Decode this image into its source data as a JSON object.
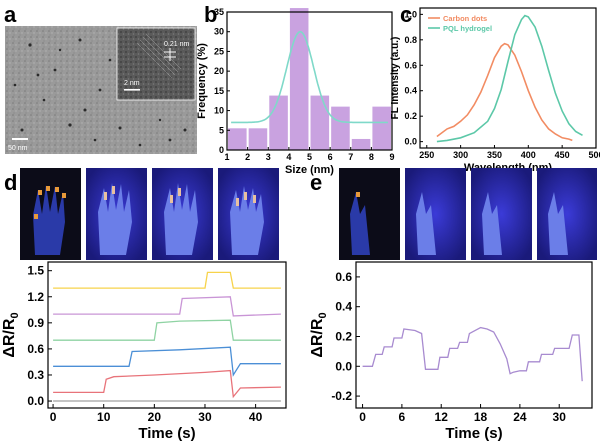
{
  "panel_labels": {
    "a": "a",
    "b": "b",
    "c": "c",
    "d": "d",
    "e": "e"
  },
  "panel_a": {
    "scale_bar": "50 nm",
    "inset_scale_bar": "2 nm",
    "lattice_label": "0.21 nm"
  },
  "colors": {
    "bar": "#c9a2e0",
    "fit": "#7fd9c9",
    "carbon": "#f28c63",
    "pql": "#5cc8a8",
    "d_yellow": "#f7d34b",
    "d_purple": "#c995d6",
    "d_green": "#8fd3a3",
    "d_blue": "#4b8fd6",
    "d_red": "#e8737a",
    "d_gray": "#a0a0a0",
    "e_line": "#a88bd0"
  },
  "chart_data": [
    {
      "id": "b",
      "type": "bar",
      "title": "",
      "xlabel": "Size (nm)",
      "ylabel": "Frequency (%)",
      "xlim": [
        1,
        9
      ],
      "ylim": [
        0,
        35
      ],
      "xticks": [
        "1",
        "2",
        "3",
        "4",
        "5",
        "6",
        "7",
        "8",
        "9"
      ],
      "yticks": [
        "0",
        "5",
        "10",
        "15",
        "20",
        "25",
        "30",
        "35"
      ],
      "bar_centers": [
        1.5,
        2.5,
        3.5,
        4.5,
        5.5,
        6.5,
        7.5,
        8.5
      ],
      "values": [
        5.5,
        5.5,
        13.8,
        36,
        13.8,
        11,
        2.8,
        11
      ],
      "fit": {
        "type": "gaussian",
        "baseline": 7,
        "amplitude": 23,
        "center": 4.55,
        "sigma": 0.65
      }
    },
    {
      "id": "c",
      "type": "line",
      "xlabel": "Wavelength (nm)",
      "ylabel": "FL Intensity (a.u.)",
      "xlim": [
        240,
        500
      ],
      "ylim": [
        -0.05,
        1.05
      ],
      "xticks": [
        "250",
        "300",
        "350",
        "400",
        "450",
        "500"
      ],
      "yticks": [
        "0.0",
        "0.2",
        "0.4",
        "0.6",
        "0.8",
        "1.0"
      ],
      "series": [
        {
          "name": "Carbon dots",
          "x": [
            265,
            280,
            290,
            300,
            310,
            320,
            330,
            340,
            350,
            360,
            365,
            370,
            380,
            390,
            400,
            410,
            420,
            430,
            440,
            450,
            460,
            465
          ],
          "y": [
            0.04,
            0.1,
            0.12,
            0.16,
            0.21,
            0.29,
            0.39,
            0.52,
            0.66,
            0.75,
            0.77,
            0.76,
            0.68,
            0.55,
            0.4,
            0.27,
            0.17,
            0.1,
            0.06,
            0.03,
            0.02,
            0.01
          ]
        },
        {
          "name": "PQL hydrogel",
          "x": [
            265,
            280,
            300,
            320,
            340,
            350,
            360,
            370,
            380,
            390,
            395,
            400,
            410,
            420,
            430,
            440,
            450,
            460,
            470,
            480
          ],
          "y": [
            0.0,
            0.01,
            0.03,
            0.07,
            0.16,
            0.26,
            0.41,
            0.63,
            0.84,
            0.96,
            0.99,
            0.98,
            0.9,
            0.75,
            0.56,
            0.38,
            0.24,
            0.14,
            0.08,
            0.05
          ]
        }
      ]
    },
    {
      "id": "d",
      "type": "line",
      "xlabel": "Time (s)",
      "ylabel": "ΔR/R0",
      "xlim": [
        -1,
        46
      ],
      "ylim": [
        -0.08,
        1.6
      ],
      "xticks": [
        "0",
        "10",
        "20",
        "30",
        "40"
      ],
      "yticks": [
        "0.0",
        "0.3",
        "0.6",
        "0.9",
        "1.2",
        "1.5"
      ],
      "series": [
        {
          "name": "gray",
          "x": [
            0,
            45
          ],
          "y": [
            0.0,
            0.0
          ]
        },
        {
          "name": "red",
          "x": [
            0,
            10,
            10.5,
            12,
            20,
            30,
            35,
            35.6,
            37,
            45
          ],
          "y": [
            0.1,
            0.1,
            0.25,
            0.28,
            0.3,
            0.33,
            0.35,
            0.05,
            0.15,
            0.16
          ]
        },
        {
          "name": "blue",
          "x": [
            0,
            15,
            15.6,
            25,
            35,
            35.6,
            37,
            45
          ],
          "y": [
            0.4,
            0.4,
            0.57,
            0.59,
            0.62,
            0.3,
            0.43,
            0.43
          ]
        },
        {
          "name": "green",
          "x": [
            0,
            20,
            20.5,
            25,
            35,
            35.6,
            45
          ],
          "y": [
            0.7,
            0.7,
            0.9,
            0.92,
            0.93,
            0.7,
            0.7
          ]
        },
        {
          "name": "purple",
          "x": [
            0,
            25,
            25.5,
            35,
            35.6,
            45
          ],
          "y": [
            1.0,
            1.0,
            1.18,
            1.2,
            0.98,
            1.0
          ]
        },
        {
          "name": "yellow",
          "x": [
            0,
            30,
            30.5,
            35,
            35.6,
            45
          ],
          "y": [
            1.3,
            1.3,
            1.48,
            1.48,
            1.3,
            1.3
          ]
        }
      ]
    },
    {
      "id": "e",
      "type": "line",
      "xlabel": "Time (s)",
      "ylabel": "ΔR/R0",
      "xlim": [
        -1,
        35
      ],
      "ylim": [
        -0.28,
        0.7
      ],
      "xticks": [
        "0",
        "6",
        "12",
        "18",
        "24",
        "30"
      ],
      "yticks": [
        "-0.2",
        "0.0",
        "0.2",
        "0.4",
        "0.6"
      ],
      "series": [
        {
          "name": "response",
          "x": [
            0,
            1.5,
            2,
            3,
            3.3,
            4.5,
            4.8,
            6,
            6.3,
            8,
            9,
            9.6,
            10,
            11.5,
            11.8,
            13,
            13.3,
            14.5,
            14.8,
            16,
            16.3,
            18,
            19,
            20,
            21,
            22,
            22.5,
            23,
            24,
            25,
            25.3,
            27,
            27.3,
            29,
            29.3,
            31.5,
            32,
            33,
            33.5
          ],
          "y": [
            0.0,
            0.0,
            0.08,
            0.08,
            0.13,
            0.13,
            0.19,
            0.19,
            0.25,
            0.24,
            0.22,
            -0.02,
            -0.02,
            -0.02,
            0.06,
            0.06,
            0.12,
            0.12,
            0.16,
            0.16,
            0.22,
            0.26,
            0.25,
            0.23,
            0.15,
            0.05,
            -0.05,
            -0.04,
            -0.03,
            -0.03,
            0.03,
            0.03,
            0.08,
            0.08,
            0.12,
            0.12,
            0.21,
            0.21,
            -0.1
          ]
        }
      ]
    }
  ]
}
